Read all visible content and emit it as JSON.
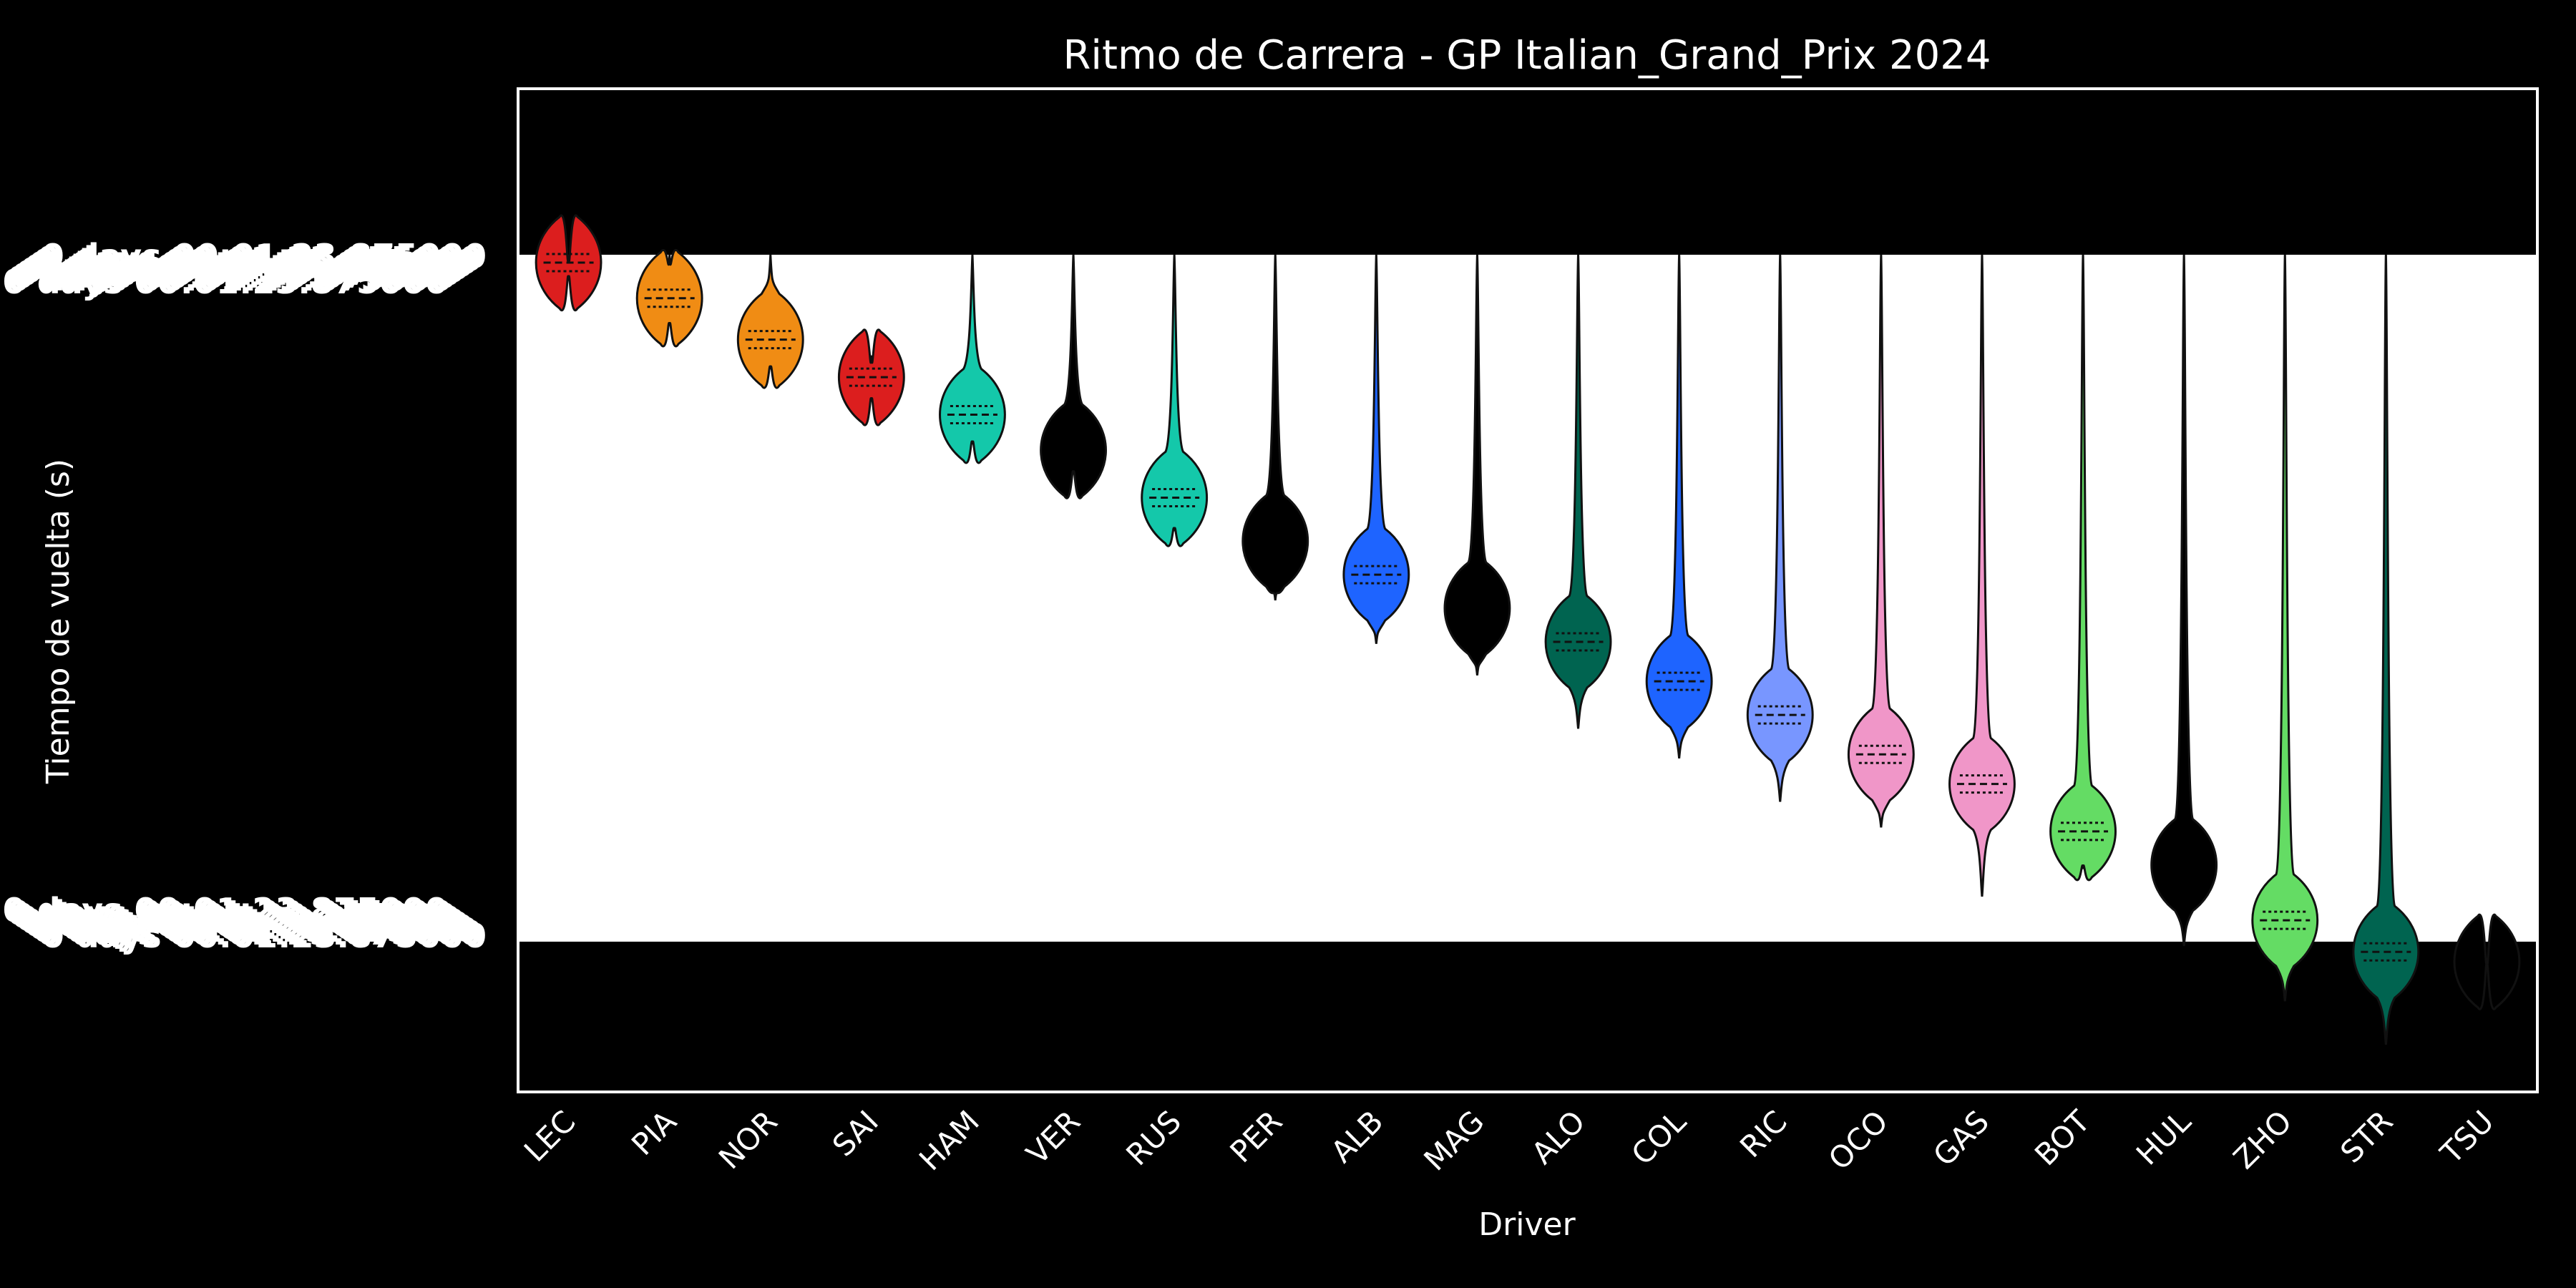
{
  "chart_data": {
    "type": "violin",
    "title": "Ritmo de Carrera - GP Italian_Grand_Prix 2024",
    "xlabel": "Driver",
    "ylabel": "Tiempo de vuelta (s)",
    "ytick_text": "0 days 00:01:23.875000",
    "categories": [
      "LEC",
      "PIA",
      "NOR",
      "SAI",
      "HAM",
      "VER",
      "RUS",
      "PER",
      "ALB",
      "MAG",
      "ALO",
      "COL",
      "RIC",
      "OCO",
      "GAS",
      "BOT",
      "HUL",
      "ZHO",
      "STR",
      "TSU"
    ],
    "series": [
      {
        "color": "#dc1e1e",
        "median": 0.4,
        "width": 0.8,
        "top": 0.0,
        "bottom": 1.2,
        "dashed": true
      },
      {
        "color": "#f08c14",
        "median": 2.2,
        "width": 0.8,
        "top": 0.0,
        "bottom": 3.6,
        "dashed": true
      },
      {
        "color": "#f08c14",
        "median": 4.3,
        "width": 0.8,
        "top": 0.0,
        "bottom": 5.8,
        "dashed": true
      },
      {
        "color": "#dc1e1e",
        "median": 6.2,
        "width": 0.8,
        "top": 5.1,
        "bottom": 7.4,
        "dashed": true
      },
      {
        "color": "#14c8aa",
        "median": 8.1,
        "width": 0.8,
        "top": 0.0,
        "bottom": 9.6,
        "dashed": true
      },
      {
        "color": "#000000",
        "median": 9.9,
        "width": 0.8,
        "top": 0.0,
        "bottom": 11.1,
        "dashed": false
      },
      {
        "color": "#14c8aa",
        "median": 12.3,
        "width": 0.8,
        "top": 0.0,
        "bottom": 14.0,
        "dashed": true
      },
      {
        "color": "#000000",
        "median": 14.5,
        "width": 0.8,
        "top": 0.0,
        "bottom": 17.5,
        "dashed": false
      },
      {
        "color": "#1e64ff",
        "median": 16.2,
        "width": 0.8,
        "top": 0.0,
        "bottom": 19.7,
        "dashed": true
      },
      {
        "color": "#000000",
        "median": 17.9,
        "width": 0.8,
        "top": 0.0,
        "bottom": 21.3,
        "dashed": false
      },
      {
        "color": "#006450",
        "median": 19.6,
        "width": 0.8,
        "top": 0.0,
        "bottom": 24.0,
        "dashed": true
      },
      {
        "color": "#1e64ff",
        "median": 21.6,
        "width": 0.8,
        "top": 0.0,
        "bottom": 25.5,
        "dashed": true
      },
      {
        "color": "#7896ff",
        "median": 23.3,
        "width": 0.8,
        "top": 0.0,
        "bottom": 27.7,
        "dashed": true
      },
      {
        "color": "#f096c8",
        "median": 25.3,
        "width": 0.8,
        "top": 0.0,
        "bottom": 29.0,
        "dashed": true
      },
      {
        "color": "#f096c8",
        "median": 26.8,
        "width": 0.8,
        "top": 0.0,
        "bottom": 32.5,
        "dashed": true
      },
      {
        "color": "#64dc64",
        "median": 29.2,
        "width": 0.8,
        "top": 0.0,
        "bottom": 31.1,
        "dashed": true
      },
      {
        "color": "#000000",
        "median": 30.9,
        "width": 0.8,
        "top": 0.0,
        "bottom": 35.0,
        "dashed": false
      },
      {
        "color": "#64dc64",
        "median": 33.7,
        "width": 0.8,
        "top": 0.0,
        "bottom": 37.8,
        "dashed": true
      },
      {
        "color": "#006450",
        "median": 35.3,
        "width": 0.8,
        "top": 0.0,
        "bottom": 40.0,
        "dashed": true
      },
      {
        "color": "#000000",
        "median": 35.8,
        "width": 0.8,
        "top": 35.6,
        "bottom": 36.0,
        "dashed": false
      }
    ],
    "grid": false
  }
}
